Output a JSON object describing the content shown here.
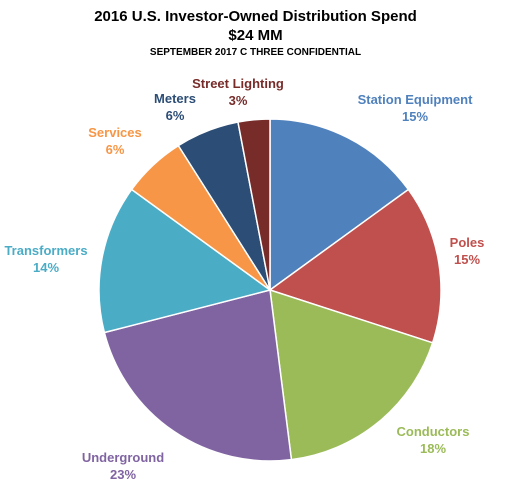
{
  "chart_data": {
    "type": "pie",
    "title": "2016 U.S. Investor-Owned Distribution Spend",
    "subtitle": "$24 MM",
    "note": "SEPTEMBER 2017 C THREE CONFIDENTIAL",
    "slices": [
      {
        "name": "Station Equipment",
        "label": "15%",
        "value": 15,
        "color": "#4F81BD"
      },
      {
        "name": "Poles",
        "label": "15%",
        "value": 15,
        "color": "#C0504D"
      },
      {
        "name": "Conductors",
        "label": "18%",
        "value": 18,
        "color": "#9BBB59"
      },
      {
        "name": "Underground",
        "label": "23%",
        "value": 23,
        "color": "#8064A2"
      },
      {
        "name": "Transformers",
        "label": "14%",
        "value": 14,
        "color": "#4BACC6"
      },
      {
        "name": "Services",
        "label": "6%",
        "value": 6,
        "color": "#F79646"
      },
      {
        "name": "Meters",
        "label": "6%",
        "value": 6,
        "color": "#2C4D75"
      },
      {
        "name": "Street Lighting",
        "label": "3%",
        "value": 3,
        "color": "#772C2A"
      }
    ],
    "start_angle": "12 o'clock",
    "direction": "clockwise",
    "legend": "none"
  }
}
